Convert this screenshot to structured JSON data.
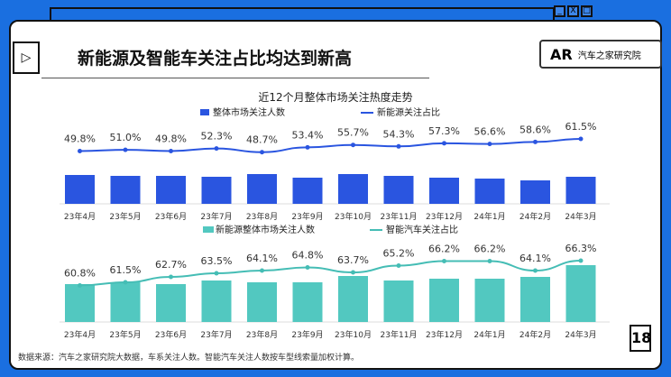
{
  "header": {
    "title": "新能源及智能车关注占比均达到新高",
    "logo_text": "汽车之家研究院",
    "logo_mark": "AR",
    "page_number": "18"
  },
  "window_buttons": [
    "_",
    "X",
    "□"
  ],
  "footnote": "数据来源：汽车之家研究院大数据，车系关注人数。智能汽车关注人数按车型线索量加权计算。",
  "chart_data": [
    {
      "type": "bar+line",
      "title": "近12个月整体市场关注热度走势",
      "categories": [
        "23年4月",
        "23年5月",
        "23年6月",
        "23年7月",
        "23年8月",
        "23年9月",
        "23年10月",
        "23年11月",
        "23年12月",
        "24年1月",
        "24年2月",
        "24年3月"
      ],
      "series": [
        {
          "name": "整体市场关注人数",
          "type": "bar",
          "color": "#2a55e0",
          "values": [
            32,
            31,
            31,
            30,
            33,
            29,
            33,
            31,
            29,
            28,
            26,
            30
          ]
        },
        {
          "name": "新能源关注占比",
          "type": "line",
          "color": "#2a55e0",
          "values": [
            49.8,
            51.0,
            49.8,
            52.3,
            48.7,
            53.4,
            55.7,
            54.3,
            57.3,
            56.6,
            58.6,
            61.5
          ],
          "labels": [
            "49.8%",
            "51.0%",
            "49.8%",
            "52.3%",
            "48.7%",
            "53.4%",
            "55.7%",
            "54.3%",
            "57.3%",
            "56.6%",
            "58.6%",
            "61.5%"
          ]
        }
      ]
    },
    {
      "type": "bar+line",
      "title": "",
      "categories": [
        "23年4月",
        "23年5月",
        "23年6月",
        "23年7月",
        "23年8月",
        "23年9月",
        "23年10月",
        "23年11月",
        "23年12月",
        "24年1月",
        "24年2月",
        "24年3月"
      ],
      "series": [
        {
          "name": "新能源整体市场关注人数",
          "type": "bar",
          "color": "#52c8c0",
          "values": [
            42,
            44,
            42,
            46,
            44,
            44,
            51,
            46,
            48,
            48,
            50,
            63
          ]
        },
        {
          "name": "智能汽车关注占比",
          "type": "line",
          "color": "#45bdb5",
          "values": [
            60.8,
            61.5,
            62.7,
            63.5,
            64.1,
            64.8,
            63.7,
            65.2,
            66.2,
            66.2,
            64.1,
            66.3
          ],
          "labels": [
            "60.8%",
            "61.5%",
            "62.7%",
            "63.5%",
            "64.1%",
            "64.8%",
            "63.7%",
            "65.2%",
            "66.2%",
            "66.2%",
            "64.1%",
            "66.3%"
          ]
        }
      ]
    }
  ]
}
